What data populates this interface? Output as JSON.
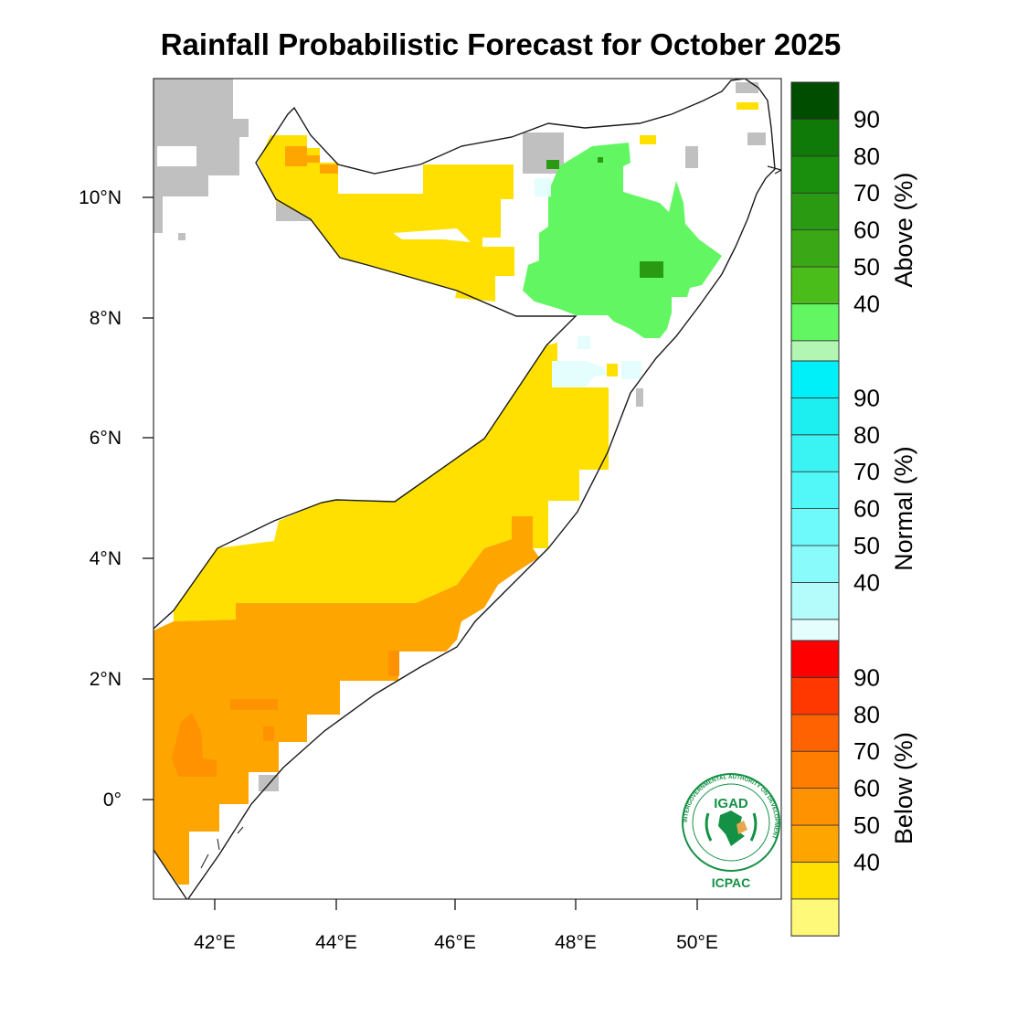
{
  "title": "Rainfall Probabilistic Forecast for October 2025",
  "map": {
    "lon_ticks": [
      "42°E",
      "44°E",
      "46°E",
      "48°E",
      "50°E"
    ],
    "lat_ticks": [
      "10°N",
      "8°N",
      "6°N",
      "4°N",
      "2°N",
      "0°"
    ]
  },
  "legends": [
    {
      "name": "Above (%)",
      "labels": [
        "90",
        "80",
        "70",
        "60",
        "50",
        "40"
      ],
      "colors": [
        "#b3f5b3",
        "#62f762",
        "#4bbd1a",
        "#3aa816",
        "#2a9a12",
        "#1a8f0e",
        "#107a08",
        "#004d00"
      ]
    },
    {
      "name": "Normal (%)",
      "labels": [
        "90",
        "80",
        "70",
        "60",
        "50",
        "40"
      ],
      "colors": [
        "#e4fdfd",
        "#b4fcfc",
        "#8afbfb",
        "#6efafa",
        "#52f8f8",
        "#3af4f4",
        "#1deef0",
        "#00f0fa"
      ]
    },
    {
      "name": "Below (%)",
      "labels": [
        "90",
        "80",
        "70",
        "60",
        "50",
        "40"
      ],
      "colors": [
        "#fff97a",
        "#ffe000",
        "#ffa500",
        "#ff9200",
        "#ff7d00",
        "#ff6200",
        "#ff3800",
        "#ff0000"
      ]
    }
  ],
  "logo": {
    "name": "IGAD",
    "sub": "ICPAC",
    "ring_text": "INTERGOVERNMENTAL AUTHORITY ON DEVELOPMENT"
  },
  "colors": {
    "below_40_50": "#ffe000",
    "below_50_60": "#ffa500",
    "above_40_50": "#62f762",
    "above_50_60": "#2a9a12",
    "normal_40_50": "#e4fdfd",
    "no_data": "#c0c0c0",
    "logo_green": "#159146"
  }
}
